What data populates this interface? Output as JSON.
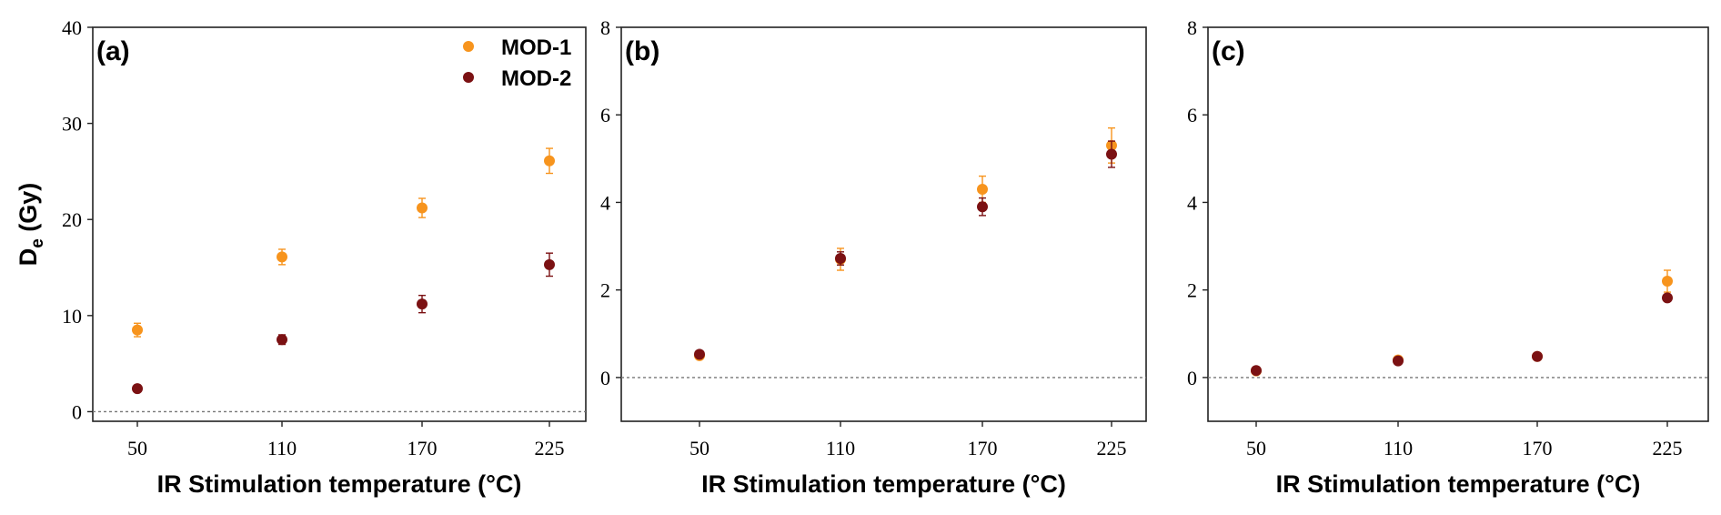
{
  "colors": {
    "mod1": "#f7941d",
    "mod2": "#7b1113"
  },
  "chart_data": [
    {
      "type": "scatter",
      "panel_label": "(a)",
      "xlabel": "IR Stimulation temperature (°C)",
      "ylabel_main": "D",
      "ylabel_sub": "e",
      "ylabel_unit": " (Gy)",
      "categories": [
        "50",
        "110",
        "170",
        "225"
      ],
      "ylim": [
        -1,
        40
      ],
      "yticks": [
        "0",
        "10",
        "20",
        "30",
        "40"
      ],
      "legend": {
        "position": "top-right",
        "entries": [
          "MOD-1",
          "MOD-2"
        ]
      },
      "series": [
        {
          "name": "MOD-1",
          "values": [
            8.5,
            16.1,
            21.2,
            26.1
          ],
          "errors": [
            0.7,
            0.8,
            1.0,
            1.3
          ]
        },
        {
          "name": "MOD-2",
          "values": [
            2.4,
            7.5,
            11.2,
            15.3
          ],
          "errors": [
            0.3,
            0.5,
            0.9,
            1.2
          ]
        }
      ]
    },
    {
      "type": "scatter",
      "panel_label": "(b)",
      "xlabel": "IR Stimulation temperature (°C)",
      "categories": [
        "50",
        "110",
        "170",
        "225"
      ],
      "ylim": [
        -1,
        8
      ],
      "yticks": [
        "0",
        "2",
        "4",
        "6",
        "8"
      ],
      "series": [
        {
          "name": "MOD-1",
          "values": [
            0.5,
            2.7,
            4.3,
            5.3
          ],
          "errors": [
            0.05,
            0.25,
            0.3,
            0.4
          ]
        },
        {
          "name": "MOD-2",
          "values": [
            0.53,
            2.72,
            3.9,
            5.1
          ],
          "errors": [
            0.05,
            0.15,
            0.2,
            0.3
          ]
        }
      ]
    },
    {
      "type": "scatter",
      "panel_label": "(c)",
      "xlabel": "IR Stimulation temperature (°C)",
      "categories": [
        "50",
        "110",
        "170",
        "225"
      ],
      "ylim": [
        -1,
        8
      ],
      "yticks": [
        "0",
        "2",
        "4",
        "6",
        "8"
      ],
      "series": [
        {
          "name": "MOD-1",
          "values": [
            0.15,
            0.4,
            0.48,
            2.2
          ],
          "errors": [
            0.02,
            0.03,
            0.03,
            0.25
          ]
        },
        {
          "name": "MOD-2",
          "values": [
            0.16,
            0.38,
            0.48,
            1.82
          ],
          "errors": [
            0.02,
            0.03,
            0.03,
            0.08
          ]
        }
      ]
    }
  ]
}
